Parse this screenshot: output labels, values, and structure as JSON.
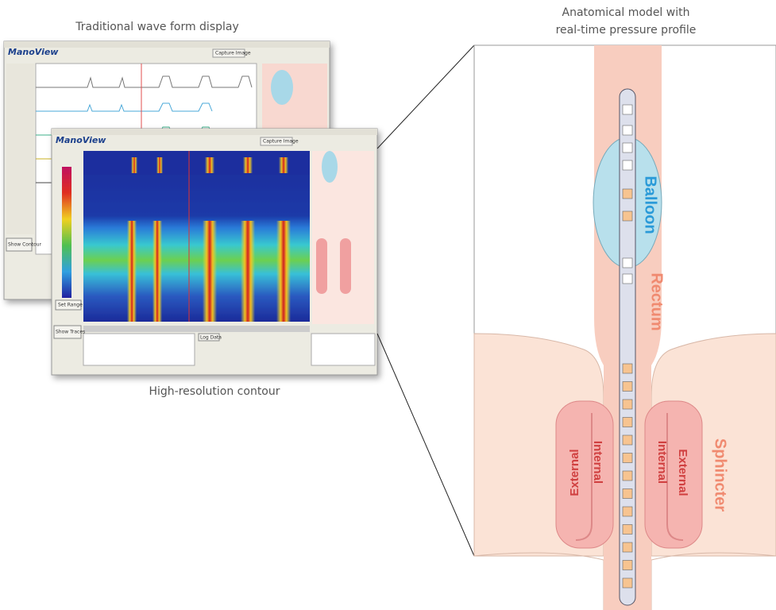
{
  "captions": {
    "waveform": "Traditional wave form display",
    "contour": "High-resolution contour",
    "anatomy_line1": "Anatomical model with",
    "anatomy_line2": "real-time pressure profile"
  },
  "anatomy": {
    "balloon": "Balloon",
    "rectum": "Rectum",
    "sphincter": "Sphincter",
    "left_external": "External",
    "left_internal": "Internal",
    "right_internal": "Internal",
    "right_external": "External"
  },
  "waveform_window": {
    "logo": "ManoView",
    "capture": "Capture Image",
    "show_contour": "Show Contour"
  },
  "contour_window": {
    "logo": "ManoView",
    "capture": "Capture Image",
    "show_traces": "Show Traces",
    "set_range": "Set Range",
    "log_data": "Log Data"
  }
}
